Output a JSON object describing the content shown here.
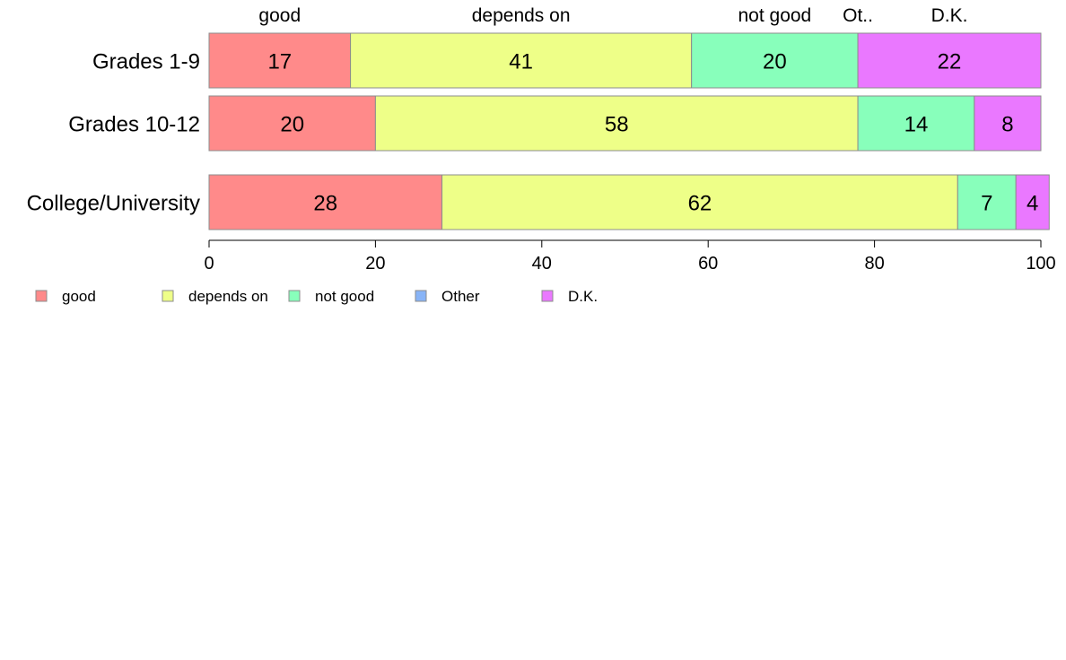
{
  "chart_data": {
    "type": "bar",
    "orientation": "horizontal",
    "stacked": true,
    "categories": [
      "Grades 1-9",
      "Grades 10-12",
      "College/University"
    ],
    "series": [
      {
        "name": "good",
        "top_label": "good",
        "color": "#ff8a8a",
        "values": [
          17,
          20,
          28
        ]
      },
      {
        "name": "depends on",
        "top_label": "depends on",
        "color": "#eeff88",
        "values": [
          41,
          58,
          62
        ]
      },
      {
        "name": "not good",
        "top_label": "not good",
        "color": "#88ffbb",
        "values": [
          20,
          14,
          7
        ]
      },
      {
        "name": "Other",
        "top_label": "Ot..",
        "color": "#88b4f7",
        "values": [
          0,
          0,
          0
        ]
      },
      {
        "name": "D.K.",
        "top_label": "D.K.",
        "color": "#ea78ff",
        "values": [
          22,
          8,
          4
        ]
      }
    ],
    "xlim": [
      0,
      100
    ],
    "xticks": [
      0,
      20,
      40,
      60,
      80,
      100
    ],
    "grid": false,
    "legend": "bottom-left"
  }
}
